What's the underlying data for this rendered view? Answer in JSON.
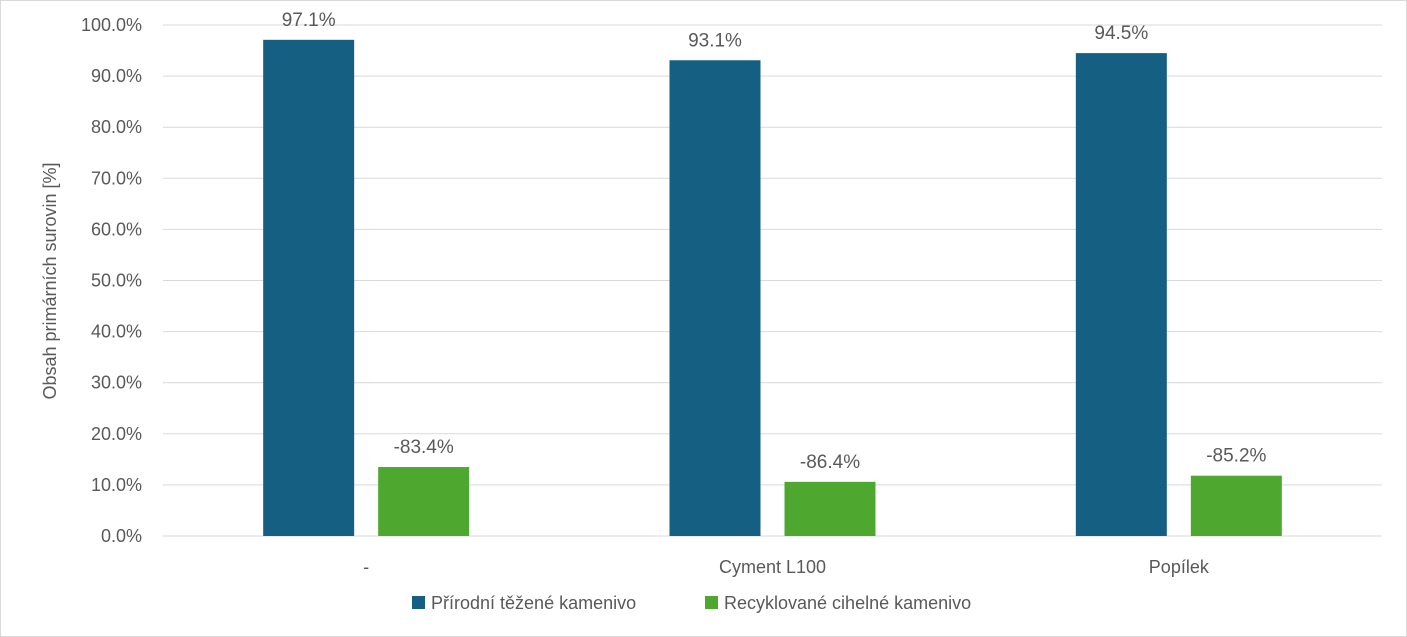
{
  "chart_data": {
    "type": "bar",
    "categories": [
      "-",
      "Cyment L100",
      "Popílek"
    ],
    "series": [
      {
        "name": "Přírodní těžené kamenivo",
        "values": [
          97.1,
          93.1,
          94.5
        ],
        "labels": [
          "97.1%",
          "93.1%",
          "94.5%"
        ],
        "color": "#156082"
      },
      {
        "name": "Recyklované cihelné kamenivo",
        "values": [
          13.5,
          10.6,
          11.8
        ],
        "labels": [
          "-83.4%",
          "-86.4%",
          "-85.2%"
        ],
        "color": "#4EA72E"
      }
    ],
    "title": "",
    "xlabel": "",
    "ylabel": "Obsah primárních surovin [%]",
    "ylim": [
      0,
      100
    ],
    "yticks": [
      0,
      10,
      20,
      30,
      40,
      50,
      60,
      70,
      80,
      90,
      100
    ],
    "ytick_labels": [
      "0.0%",
      "10.0%",
      "20.0%",
      "30.0%",
      "40.0%",
      "50.0%",
      "60.0%",
      "70.0%",
      "80.0%",
      "90.0%",
      "100.0%"
    ],
    "grid": true,
    "legend": "bottom"
  }
}
